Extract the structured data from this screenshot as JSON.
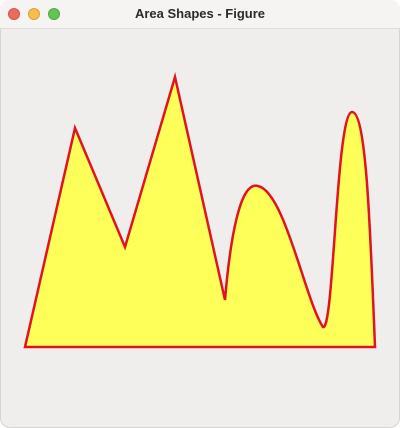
{
  "window": {
    "title": "Area Shapes - Figure"
  },
  "figure": {
    "fill_color": "#ffff5a",
    "stroke_color": "#e0141e"
  }
}
